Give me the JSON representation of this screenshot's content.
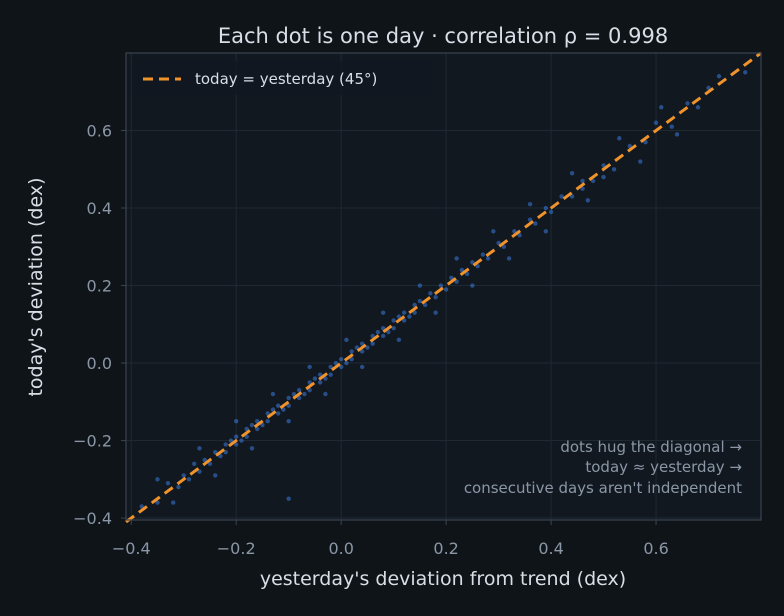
{
  "chart_data": {
    "type": "scatter",
    "title": "Each dot is one day · correlation ρ = 0.998",
    "xlabel": "yesterday's deviation from trend (dex)",
    "ylabel": "today's deviation (dex)",
    "xlim": [
      -0.41,
      0.8
    ],
    "ylim": [
      -0.405,
      0.8
    ],
    "xticks": [
      -0.4,
      -0.2,
      0.0,
      0.2,
      0.4,
      0.6
    ],
    "yticks": [
      -0.4,
      -0.2,
      0.0,
      0.2,
      0.4,
      0.6
    ],
    "xtick_labels": [
      "−0.4",
      "−0.2",
      "0.0",
      "0.2",
      "0.4",
      "0.6"
    ],
    "ytick_labels": [
      "−0.4",
      "−0.2",
      "0.0",
      "0.2",
      "0.4",
      "0.6"
    ],
    "grid": true,
    "legend": {
      "placement": "top-left",
      "entries": [
        {
          "label": "today = yesterday (45°)",
          "style": "dashed",
          "color": "#f0932b"
        }
      ]
    },
    "reference_line": {
      "name": "today = yesterday (45°)",
      "x": [
        -0.41,
        0.8
      ],
      "y": [
        -0.41,
        0.8
      ],
      "color": "#f0932b",
      "style": "dashed"
    },
    "annotation": [
      "dots hug the diagonal →",
      "today ≈ yesterday →",
      "consecutive days aren't independent"
    ],
    "series": [
      {
        "color": "#3a7be0",
        "points": [
          [
            -0.38,
            -0.37
          ],
          [
            -0.35,
            -0.36
          ],
          [
            -0.33,
            -0.31
          ],
          [
            -0.31,
            -0.32
          ],
          [
            -0.3,
            -0.29
          ],
          [
            -0.29,
            -0.3
          ],
          [
            -0.28,
            -0.26
          ],
          [
            -0.27,
            -0.28
          ],
          [
            -0.26,
            -0.25
          ],
          [
            -0.25,
            -0.26
          ],
          [
            -0.24,
            -0.23
          ],
          [
            -0.23,
            -0.24
          ],
          [
            -0.22,
            -0.21
          ],
          [
            -0.22,
            -0.23
          ],
          [
            -0.21,
            -0.2
          ],
          [
            -0.2,
            -0.21
          ],
          [
            -0.2,
            -0.19
          ],
          [
            -0.19,
            -0.2
          ],
          [
            -0.18,
            -0.17
          ],
          [
            -0.18,
            -0.19
          ],
          [
            -0.17,
            -0.16
          ],
          [
            -0.16,
            -0.17
          ],
          [
            -0.16,
            -0.15
          ],
          [
            -0.15,
            -0.16
          ],
          [
            -0.14,
            -0.13
          ],
          [
            -0.14,
            -0.15
          ],
          [
            -0.13,
            -0.12
          ],
          [
            -0.12,
            -0.13
          ],
          [
            -0.12,
            -0.11
          ],
          [
            -0.11,
            -0.12
          ],
          [
            -0.1,
            -0.09
          ],
          [
            -0.1,
            -0.11
          ],
          [
            -0.09,
            -0.08
          ],
          [
            -0.08,
            -0.09
          ],
          [
            -0.08,
            -0.07
          ],
          [
            -0.07,
            -0.08
          ],
          [
            -0.06,
            -0.05
          ],
          [
            -0.06,
            -0.07
          ],
          [
            -0.05,
            -0.04
          ],
          [
            -0.04,
            -0.05
          ],
          [
            -0.04,
            -0.03
          ],
          [
            -0.03,
            -0.04
          ],
          [
            -0.02,
            -0.01
          ],
          [
            -0.02,
            -0.03
          ],
          [
            -0.01,
            0.0
          ],
          [
            0.0,
            -0.01
          ],
          [
            0.0,
            0.01
          ],
          [
            0.01,
            0.0
          ],
          [
            0.02,
            0.03
          ],
          [
            0.02,
            0.01
          ],
          [
            0.03,
            0.04
          ],
          [
            0.04,
            0.03
          ],
          [
            0.04,
            0.05
          ],
          [
            0.05,
            0.04
          ],
          [
            0.06,
            0.07
          ],
          [
            0.06,
            0.05
          ],
          [
            0.07,
            0.08
          ],
          [
            0.08,
            0.07
          ],
          [
            0.08,
            0.09
          ],
          [
            0.09,
            0.08
          ],
          [
            0.1,
            0.11
          ],
          [
            0.1,
            0.09
          ],
          [
            0.11,
            0.12
          ],
          [
            0.12,
            0.11
          ],
          [
            0.12,
            0.13
          ],
          [
            0.13,
            0.12
          ],
          [
            0.14,
            0.15
          ],
          [
            0.14,
            0.13
          ],
          [
            0.15,
            0.16
          ],
          [
            0.16,
            0.15
          ],
          [
            0.17,
            0.18
          ],
          [
            0.18,
            0.17
          ],
          [
            0.19,
            0.2
          ],
          [
            0.2,
            0.19
          ],
          [
            0.21,
            0.22
          ],
          [
            0.22,
            0.21
          ],
          [
            0.23,
            0.24
          ],
          [
            0.24,
            0.23
          ],
          [
            0.25,
            0.26
          ],
          [
            0.26,
            0.25
          ],
          [
            0.27,
            0.28
          ],
          [
            0.28,
            0.27
          ],
          [
            0.3,
            0.31
          ],
          [
            0.31,
            0.3
          ],
          [
            0.33,
            0.34
          ],
          [
            0.34,
            0.33
          ],
          [
            0.36,
            0.37
          ],
          [
            0.37,
            0.36
          ],
          [
            0.39,
            0.4
          ],
          [
            0.4,
            0.39
          ],
          [
            0.42,
            0.43
          ],
          [
            0.44,
            0.43
          ],
          [
            0.46,
            0.47
          ],
          [
            0.48,
            0.47
          ],
          [
            0.5,
            0.51
          ],
          [
            0.52,
            0.5
          ],
          [
            0.55,
            0.56
          ],
          [
            0.58,
            0.57
          ],
          [
            0.6,
            0.62
          ],
          [
            0.63,
            0.61
          ],
          [
            0.66,
            0.67
          ],
          [
            0.7,
            0.71
          ],
          [
            0.72,
            0.74
          ],
          [
            0.77,
            0.75
          ],
          [
            -0.35,
            -0.3
          ],
          [
            -0.32,
            -0.36
          ],
          [
            -0.27,
            -0.22
          ],
          [
            -0.24,
            -0.29
          ],
          [
            -0.2,
            -0.15
          ],
          [
            -0.17,
            -0.22
          ],
          [
            -0.13,
            -0.08
          ],
          [
            -0.1,
            -0.15
          ],
          [
            -0.06,
            -0.01
          ],
          [
            -0.03,
            -0.08
          ],
          [
            0.01,
            0.06
          ],
          [
            0.04,
            -0.01
          ],
          [
            0.08,
            0.13
          ],
          [
            0.11,
            0.06
          ],
          [
            0.15,
            0.2
          ],
          [
            0.18,
            0.13
          ],
          [
            0.22,
            0.27
          ],
          [
            0.25,
            0.2
          ],
          [
            0.29,
            0.34
          ],
          [
            0.32,
            0.27
          ],
          [
            0.36,
            0.41
          ],
          [
            0.39,
            0.34
          ],
          [
            0.44,
            0.49
          ],
          [
            0.47,
            0.42
          ],
          [
            0.53,
            0.58
          ],
          [
            0.57,
            0.52
          ],
          [
            0.61,
            0.66
          ],
          [
            0.64,
            0.59
          ],
          [
            0.68,
            0.66
          ],
          [
            -0.1,
            -0.35
          ],
          [
            0.5,
            0.48
          ],
          [
            0.46,
            0.45
          ]
        ]
      }
    ]
  }
}
